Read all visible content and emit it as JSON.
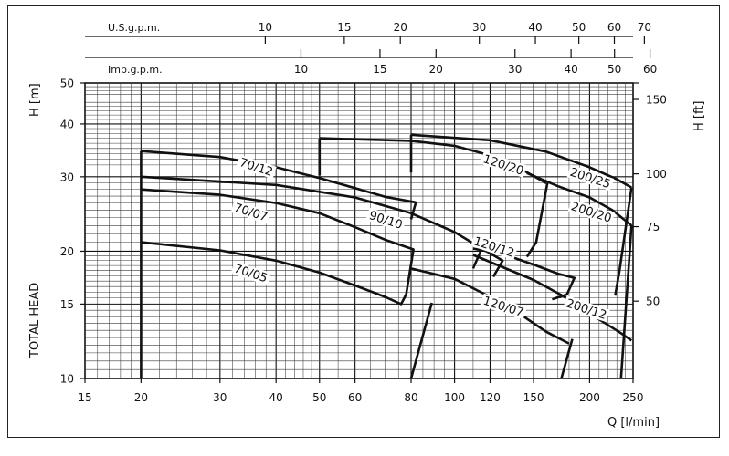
{
  "chart_data": {
    "type": "line",
    "title": "",
    "xlabel": "Q [l/min]",
    "ylabel_left": "H [m]",
    "ylabel_left_secondary": "TOTAL HEAD",
    "ylabel_right": "H [ft]",
    "x_scale": "log",
    "y_scale": "log",
    "xlim": [
      15,
      250
    ],
    "ylim": [
      10,
      50
    ],
    "x_ticks": [
      15,
      20,
      30,
      40,
      50,
      60,
      80,
      100,
      120,
      150,
      200,
      250
    ],
    "y_ticks": [
      10,
      15,
      20,
      30,
      40,
      50
    ],
    "y_ticks_ft": [
      50,
      75,
      100,
      150
    ],
    "top_scales": [
      {
        "name": "U.S.g.p.m.",
        "ticks": [
          10,
          15,
          20,
          30,
          40,
          50,
          60,
          70
        ],
        "lpm_per_unit": 3.785
      },
      {
        "name": "Imp.g.p.m.",
        "ticks": [
          10,
          15,
          20,
          30,
          40,
          50,
          60
        ],
        "lpm_per_unit": 4.546
      }
    ],
    "series": [
      {
        "name": "70/05",
        "points": [
          [
            20,
            21
          ],
          [
            30,
            20.1
          ],
          [
            40,
            19
          ],
          [
            50,
            17.8
          ],
          [
            60,
            16.6
          ],
          [
            70,
            15.6
          ],
          [
            76,
            15.0
          ],
          [
            78,
            15.8
          ]
        ],
        "label_at": [
          35,
          17.5
        ]
      },
      {
        "name": "70/07",
        "points": [
          [
            20,
            28
          ],
          [
            30,
            27.2
          ],
          [
            40,
            26
          ],
          [
            50,
            24.6
          ],
          [
            60,
            22.8
          ],
          [
            70,
            21.3
          ],
          [
            81,
            20.2
          ],
          [
            78,
            15.8
          ]
        ],
        "label_at": [
          35,
          24.4
        ]
      },
      {
        "name": "70/12",
        "points": [
          [
            20,
            34.5
          ],
          [
            30,
            33.4
          ],
          [
            40,
            31.6
          ],
          [
            50,
            29.8
          ],
          [
            60,
            28.2
          ],
          [
            70,
            26.9
          ],
          [
            82,
            26.1
          ]
        ],
        "label_at": [
          36,
          31.2
        ]
      },
      {
        "name": "90/10",
        "points": [
          [
            20,
            30
          ],
          [
            40,
            28.7
          ],
          [
            60,
            26.8
          ],
          [
            80,
            24.6
          ],
          [
            100,
            22.2
          ],
          [
            115,
            20.3
          ],
          [
            128,
            19
          ],
          [
            122,
            17.4
          ]
        ],
        "label_at": [
          70,
          23.4
        ]
      },
      {
        "name": "120/07",
        "points": [
          [
            80,
            18.2
          ],
          [
            100,
            17.2
          ],
          [
            120,
            15.6
          ],
          [
            140,
            14.2
          ],
          [
            160,
            12.9
          ],
          [
            180,
            12.1
          ]
        ],
        "label_at": [
          128,
          14.6
        ]
      },
      {
        "name": "120/12",
        "points": [
          [
            110,
            20.3
          ],
          [
            130,
            19.6
          ],
          [
            150,
            18.6
          ],
          [
            170,
            17.7
          ],
          [
            185,
            17.3
          ],
          [
            178,
            15.8
          ],
          [
            165,
            15.4
          ]
        ],
        "label_at": [
          122,
          20.2
        ]
      },
      {
        "name": "120/20",
        "points": [
          [
            50,
            37
          ],
          [
            80,
            36.5
          ],
          [
            100,
            35.5
          ],
          [
            120,
            33.7
          ],
          [
            140,
            31.4
          ],
          [
            160,
            29
          ]
        ],
        "label_at": [
          128,
          31.6
        ]
      },
      {
        "name": "200/12",
        "points": [
          [
            110,
            19.6
          ],
          [
            150,
            17.1
          ],
          [
            180,
            15.4
          ],
          [
            210,
            13.8
          ],
          [
            235,
            12.8
          ],
          [
            248,
            12.3
          ]
        ],
        "label_at": [
          196,
          14.4
        ]
      },
      {
        "name": "200/20",
        "points": [
          [
            145,
            30.6
          ],
          [
            170,
            28.5
          ],
          [
            200,
            26.8
          ],
          [
            225,
            25
          ],
          [
            248,
            23
          ]
        ],
        "label_at": [
          201,
          24.4
        ]
      },
      {
        "name": "200/25",
        "points": [
          [
            80,
            37.7
          ],
          [
            120,
            36.6
          ],
          [
            160,
            34.4
          ],
          [
            200,
            31.6
          ],
          [
            230,
            29.6
          ],
          [
            248,
            28.3
          ]
        ],
        "label_at": [
          200,
          29.4
        ]
      }
    ],
    "limit_lines": [
      [
        [
          20,
          10
        ],
        [
          20,
          34.5
        ]
      ],
      [
        [
          50,
          30.2
        ],
        [
          50,
          37
        ]
      ],
      [
        [
          80,
          30.7
        ],
        [
          80,
          37.7
        ]
      ],
      [
        [
          82,
          26.1
        ],
        [
          80,
          23.8
        ]
      ],
      [
        [
          89,
          15.1
        ],
        [
          80,
          10
        ]
      ],
      [
        [
          115,
          20.3
        ],
        [
          110,
          18.2
        ]
      ],
      [
        [
          161,
          29
        ],
        [
          152,
          21
        ],
        [
          145,
          19.4
        ]
      ],
      [
        [
          183,
          12.4
        ],
        [
          173,
          10
        ]
      ],
      [
        [
          248,
          28.3
        ],
        [
          233,
          17.9
        ],
        [
          228,
          15.7
        ]
      ],
      [
        [
          248,
          23
        ],
        [
          235,
          10
        ]
      ]
    ]
  }
}
